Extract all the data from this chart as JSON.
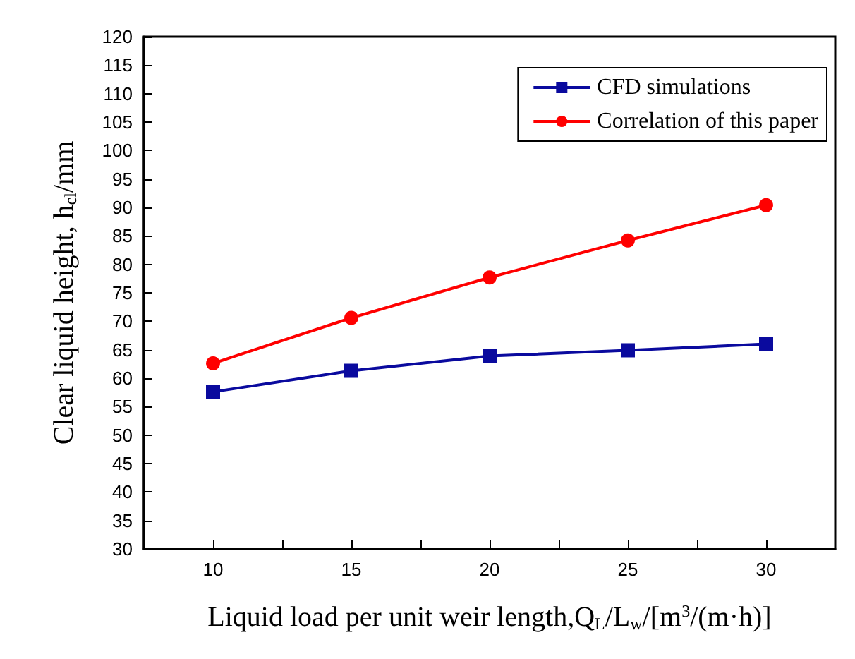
{
  "chart_data": {
    "type": "line",
    "xlabel": "Liquid load per unit weir length,Q$_{L}$/L$_{w}$/[m$^{3}$/(m·h)]",
    "ylabel": "Clear liquid height, h$_{cl}$/mm",
    "x": [
      10,
      15,
      20,
      25,
      30
    ],
    "series": [
      {
        "name": "CFD simulations",
        "color": "#0a0a9e",
        "marker": "square",
        "values": [
          57.6,
          61.3,
          63.9,
          64.9,
          66.0
        ]
      },
      {
        "name": "Correlation of this paper",
        "color": "#ff0000",
        "marker": "circle",
        "values": [
          62.6,
          70.6,
          77.7,
          84.2,
          90.4
        ]
      }
    ],
    "xlim": [
      7.5,
      32.5
    ],
    "xticks": [
      10,
      {
        "value": 12.5,
        "label": null
      },
      15,
      {
        "value": 17.5,
        "label": null
      },
      20,
      {
        "value": 22.5,
        "label": null
      },
      25,
      {
        "value": 27.5,
        "label": null
      },
      30
    ],
    "ylim": [
      30,
      120
    ],
    "yticks": [
      30,
      35,
      40,
      45,
      50,
      55,
      60,
      65,
      70,
      75,
      80,
      85,
      90,
      95,
      100,
      105,
      110,
      115,
      120
    ],
    "grid": false,
    "legend": "top right",
    "line_style": "solid"
  }
}
